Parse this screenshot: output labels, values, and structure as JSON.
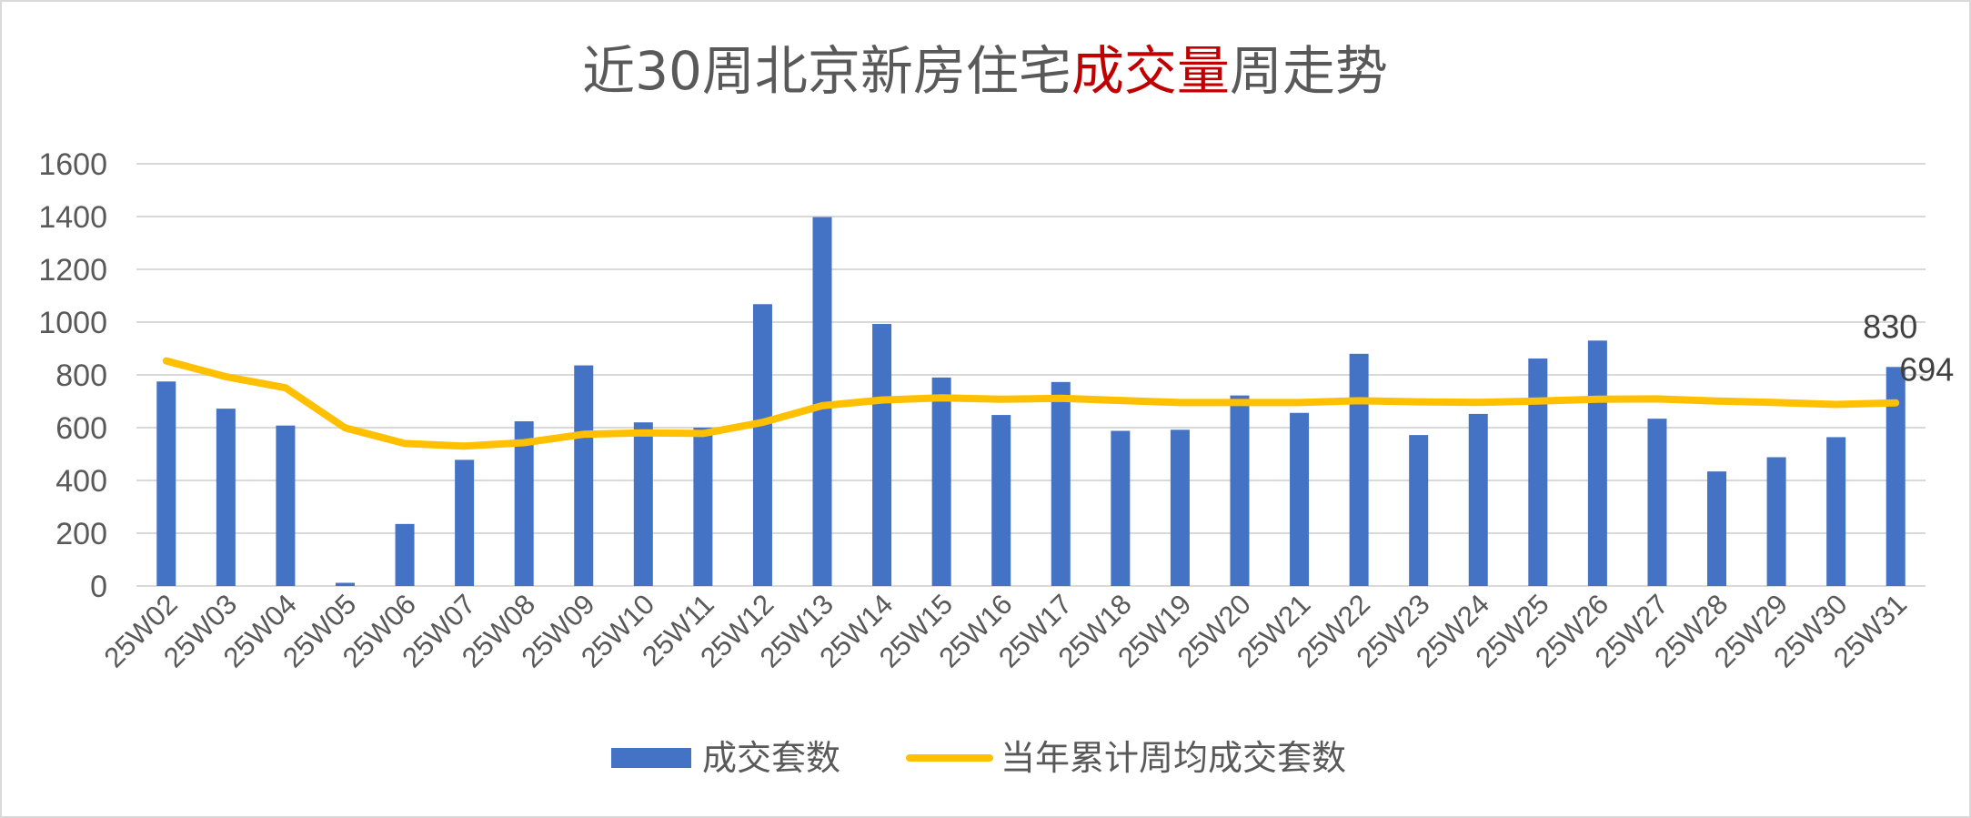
{
  "chart_data": {
    "type": "bar",
    "title_segments": [
      {
        "text": "近30周北京新房住宅",
        "color": "#595959"
      },
      {
        "text": "成交量",
        "color": "#c00000"
      },
      {
        "text": "周走势",
        "color": "#595959"
      }
    ],
    "categories": [
      "25W02",
      "25W03",
      "25W04",
      "25W05",
      "25W06",
      "25W07",
      "25W08",
      "25W09",
      "25W10",
      "25W11",
      "25W12",
      "25W13",
      "25W14",
      "25W15",
      "25W16",
      "25W17",
      "25W18",
      "25W19",
      "25W20",
      "25W21",
      "25W22",
      "25W23",
      "25W24",
      "25W25",
      "25W26",
      "25W27",
      "25W28",
      "25W29",
      "25W30",
      "25W31"
    ],
    "series": [
      {
        "name": "成交套数",
        "type": "bar",
        "color": "#4472c4",
        "values": [
          775,
          672,
          608,
          12,
          235,
          478,
          624,
          836,
          620,
          600,
          1068,
          1398,
          993,
          790,
          648,
          773,
          588,
          592,
          722,
          656,
          880,
          572,
          652,
          862,
          930,
          634,
          434,
          488,
          564,
          830
        ]
      },
      {
        "name": "当年累计周均成交套数",
        "type": "line",
        "color": "#ffc000",
        "values": [
          853,
          793,
          751,
          599,
          540,
          530,
          543,
          575,
          580,
          578,
          620,
          683,
          705,
          713,
          708,
          711,
          703,
          695,
          695,
          695,
          702,
          698,
          696,
          701,
          708,
          709,
          701,
          695,
          688,
          694
        ]
      }
    ],
    "data_labels": {
      "last_bar": "830",
      "last_line": "694"
    },
    "ylim": [
      0,
      1600
    ],
    "yticks": [
      0,
      200,
      400,
      600,
      800,
      1000,
      1200,
      1400,
      1600
    ],
    "grid": true,
    "legend_position": "bottom"
  }
}
